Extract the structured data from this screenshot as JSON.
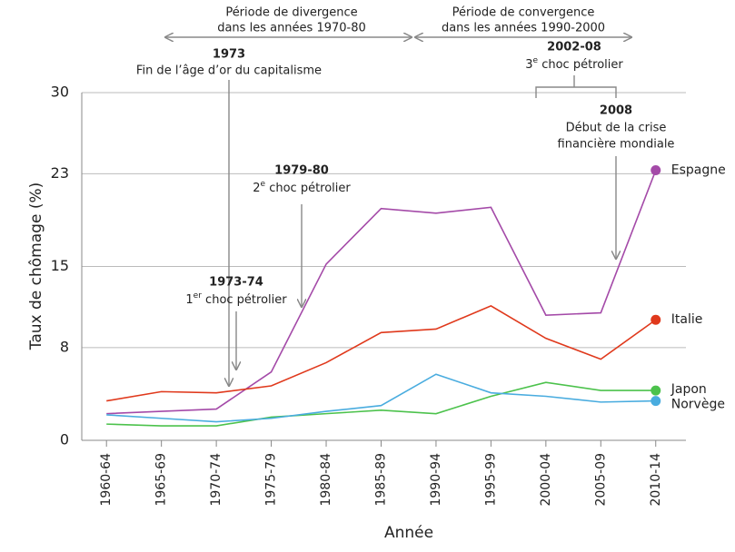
{
  "chart_data": {
    "type": "line",
    "ylabel": "Taux de chômage (%)",
    "xlabel": "Année",
    "categories": [
      "1960-64",
      "1965-69",
      "1970-74",
      "1975-79",
      "1980-84",
      "1985-89",
      "1990-94",
      "1995-99",
      "2000-04",
      "2005-09",
      "2010-14"
    ],
    "series": [
      {
        "name": "Espagne",
        "color": "#a44aa8",
        "values": [
          2.3,
          2.5,
          2.7,
          5.9,
          15.2,
          20.0,
          19.6,
          20.1,
          10.8,
          11.0,
          23.3
        ]
      },
      {
        "name": "Italie",
        "color": "#e0391c",
        "values": [
          3.4,
          4.2,
          4.1,
          4.7,
          6.7,
          9.3,
          9.6,
          11.6,
          8.8,
          7.0,
          10.4
        ]
      },
      {
        "name": "Japon",
        "color": "#4cc24c",
        "values": [
          1.4,
          1.25,
          1.25,
          2.0,
          2.3,
          2.6,
          2.3,
          3.8,
          5.0,
          4.3,
          4.3
        ]
      },
      {
        "name": "Norvège",
        "color": "#49acdf",
        "values": [
          2.2,
          1.9,
          1.6,
          1.9,
          2.5,
          3.0,
          5.7,
          4.1,
          3.8,
          3.3,
          3.4
        ]
      }
    ],
    "ylim": [
      0,
      30
    ],
    "yticks": [
      0,
      8,
      15,
      23,
      30
    ],
    "grid": true,
    "annotations": {
      "divergence": [
        "Période de divergence",
        "dans les années 1970-80"
      ],
      "convergence": [
        "Période de convergence",
        "dans les années 1990-2000"
      ],
      "a1973": {
        "year": "1973",
        "text": "Fin de l’âge d’or du capitalisme"
      },
      "a2002": {
        "year": "2002-08",
        "text": [
          "3",
          "e",
          " choc pétrolier"
        ]
      },
      "a2008": {
        "year": "2008",
        "text": [
          "Début de la crise",
          "financière mondiale"
        ]
      },
      "a1979": {
        "year": "1979-80",
        "text": [
          "2",
          "e",
          " choc pétrolier"
        ]
      },
      "a1973b": {
        "year": "1973-74",
        "text": [
          "1",
          "er",
          " choc pétrolier"
        ]
      }
    }
  }
}
